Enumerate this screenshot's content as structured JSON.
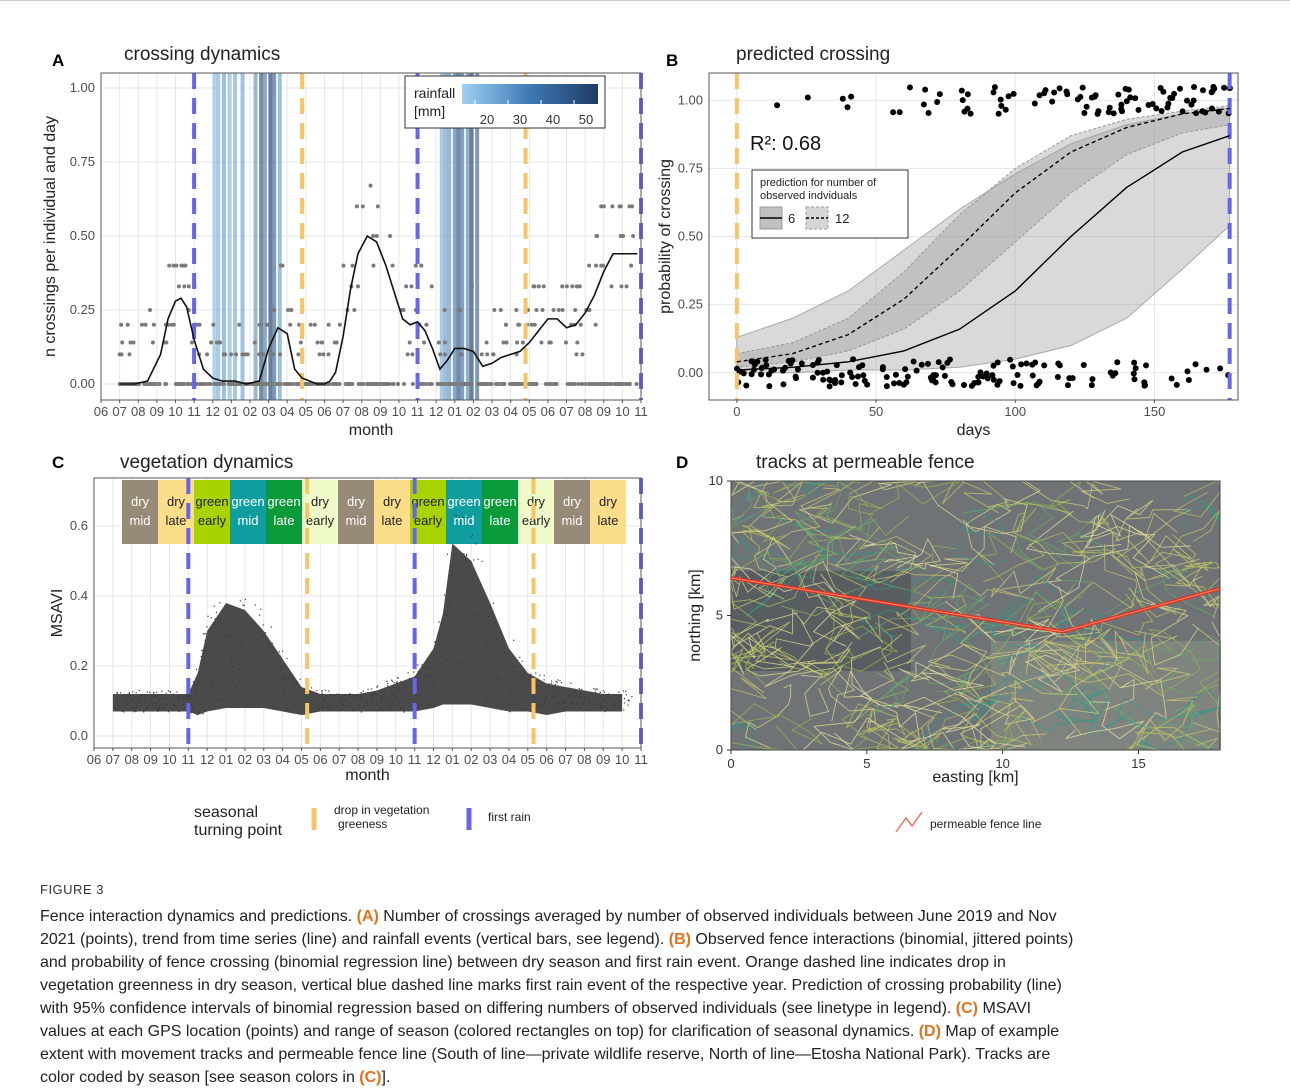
{
  "panels": {
    "A": {
      "letter": "A",
      "title": "crossing dynamics"
    },
    "B": {
      "letter": "B",
      "title": "predicted crossing"
    },
    "C": {
      "letter": "C",
      "title": "vegetation dynamics"
    },
    "D": {
      "letter": "D",
      "title": "tracks at permeable fence"
    }
  },
  "legend": {
    "rainfall_title_line1": "rainfall",
    "rainfall_title_line2": "[mm]",
    "rainfall_ticks": [
      "20",
      "30",
      "40",
      "50"
    ],
    "prediction_title_line1": "prediction for number of",
    "prediction_title_line2": "observed indviduals",
    "prediction_items": [
      "6",
      "12"
    ],
    "r2_label": "R²: 0.68",
    "seasonal_line1": "seasonal",
    "seasonal_line2": "turning point",
    "drop_label_line1": "drop in vegetation",
    "drop_label_line2": "greeness",
    "first_rain_label": "first rain",
    "fence_label": "permeable fence line"
  },
  "colors": {
    "orange_dashed": "#f8c46a",
    "blue_dashed": "#6565ef",
    "rain_light": "#9fd0f2",
    "rain_dark": "#1e3b63",
    "fence": "#e0301e",
    "dry_mid": "#978a77",
    "dry_late": "#fcdd8a",
    "green_early": "#a9d300",
    "green_mid": "#0f9da0",
    "green_late": "#0a9a3a",
    "dry_early": "#eefac8"
  },
  "chart_data": [
    {
      "panel": "A",
      "type": "line",
      "title": "crossing dynamics",
      "xlabel": "month",
      "ylabel": "n crossings per individual and day",
      "x_ticks": [
        "06",
        "07",
        "08",
        "09",
        "10",
        "11",
        "12",
        "01",
        "02",
        "03",
        "04",
        "05",
        "06",
        "07",
        "08",
        "09",
        "10",
        "11",
        "12",
        "01",
        "02",
        "03",
        "04",
        "05",
        "06",
        "07",
        "08",
        "09",
        "10",
        "11"
      ],
      "y_ticks": [
        "0.00",
        "0.25",
        "0.50",
        "0.75",
        "1.00"
      ],
      "ylim": [
        0,
        1
      ],
      "trend_month_index": [
        1,
        1.8,
        2.5,
        3.2,
        3.6,
        4.0,
        4.3,
        4.6,
        5.0,
        5.5,
        6.0,
        6.5,
        7.2,
        7.8,
        8.5,
        9.0,
        9.5,
        10.0,
        10.4,
        10.8,
        11.2,
        11.6,
        12.0,
        12.3,
        12.6,
        13.0,
        13.4,
        13.8,
        14.3,
        14.8,
        15.3,
        15.8,
        16.2,
        16.6,
        17.0,
        17.4,
        17.8,
        18.2,
        18.6,
        19.0,
        19.5,
        20.0,
        20.5,
        21.0,
        21.5,
        22.0,
        22.5,
        23.0,
        23.5,
        24.0,
        24.5,
        25.0,
        25.5,
        26.0,
        26.5,
        27.0,
        27.5,
        28.0,
        28.5,
        28.8
      ],
      "trend_values": [
        0,
        0,
        0.01,
        0.1,
        0.22,
        0.28,
        0.29,
        0.26,
        0.15,
        0.05,
        0.02,
        0.01,
        0.01,
        0.0,
        0.01,
        0.12,
        0.19,
        0.17,
        0.05,
        0.02,
        0.01,
        0.0,
        0.0,
        0.01,
        0.04,
        0.16,
        0.32,
        0.44,
        0.5,
        0.48,
        0.4,
        0.3,
        0.22,
        0.2,
        0.21,
        0.18,
        0.12,
        0.05,
        0.08,
        0.12,
        0.12,
        0.11,
        0.06,
        0.07,
        0.09,
        0.1,
        0.11,
        0.14,
        0.18,
        0.22,
        0.22,
        0.19,
        0.2,
        0.24,
        0.3,
        0.38,
        0.44,
        0.44,
        0.44,
        0.44
      ],
      "first_rain_month_index": [
        5,
        17,
        29
      ],
      "greenness_drop_month_index": [
        10.8,
        22.8
      ],
      "rainfall_bars_month_index": [
        6.1,
        6.3,
        6.6,
        6.9,
        7.2,
        7.6,
        8.3,
        8.6,
        8.8,
        9.1,
        9.3,
        9.6,
        18.3,
        18.5,
        18.7,
        19.0,
        19.2,
        19.4,
        19.7,
        19.9,
        20.2
      ],
      "rainfall_mm": [
        15,
        18,
        22,
        16,
        19,
        21,
        25,
        40,
        30,
        45,
        35,
        22,
        18,
        22,
        25,
        30,
        40,
        33,
        28,
        45,
        35
      ]
    },
    {
      "panel": "B",
      "type": "line",
      "title": "predicted crossing",
      "xlabel": "days",
      "ylabel": "probability of crossing",
      "x_ticks": [
        "0",
        "50",
        "100",
        "150"
      ],
      "y_ticks": [
        "0.00",
        "0.25",
        "0.50",
        "0.75",
        "1.00"
      ],
      "xlim": [
        -10,
        180
      ],
      "ylim": [
        -0.1,
        1.1
      ],
      "x": [
        0,
        20,
        40,
        60,
        80,
        100,
        120,
        140,
        160,
        177
      ],
      "series": [
        {
          "name": "6",
          "values": [
            0.01,
            0.02,
            0.04,
            0.08,
            0.16,
            0.3,
            0.5,
            0.68,
            0.81,
            0.87
          ],
          "lower": [
            0.0,
            0.0,
            0.01,
            0.01,
            0.02,
            0.05,
            0.1,
            0.2,
            0.38,
            0.54
          ],
          "upper": [
            0.13,
            0.2,
            0.3,
            0.45,
            0.6,
            0.73,
            0.84,
            0.91,
            0.95,
            0.97
          ]
        },
        {
          "name": "12",
          "values": [
            0.04,
            0.07,
            0.14,
            0.27,
            0.46,
            0.66,
            0.81,
            0.9,
            0.95,
            0.97
          ],
          "lower": [
            0.02,
            0.04,
            0.08,
            0.16,
            0.3,
            0.48,
            0.66,
            0.8,
            0.88,
            0.91
          ],
          "upper": [
            0.07,
            0.11,
            0.2,
            0.37,
            0.58,
            0.75,
            0.87,
            0.93,
            0.96,
            0.98
          ]
        }
      ],
      "greenness_drop_day": 0,
      "first_rain_day": 177
    },
    {
      "panel": "C",
      "type": "scatter",
      "title": "vegetation dynamics",
      "xlabel": "month",
      "ylabel": "MSAVI",
      "x_ticks": [
        "06",
        "07",
        "08",
        "09",
        "10",
        "11",
        "12",
        "01",
        "02",
        "03",
        "04",
        "05",
        "06",
        "07",
        "08",
        "09",
        "10",
        "11",
        "12",
        "01",
        "02",
        "03",
        "04",
        "05",
        "06",
        "07",
        "08",
        "09",
        "10",
        "11"
      ],
      "y_ticks": [
        "0.0",
        "0.2",
        "0.4",
        "0.6"
      ],
      "ylim": [
        -0.02,
        0.72
      ],
      "seasons": [
        {
          "line1": "dry",
          "line2": "mid",
          "color_key": "dry_mid"
        },
        {
          "line1": "dry",
          "line2": "late",
          "color_key": "dry_late"
        },
        {
          "line1": "green",
          "line2": "early",
          "color_key": "green_early"
        },
        {
          "line1": "green",
          "line2": "mid",
          "color_key": "green_mid"
        },
        {
          "line1": "green",
          "line2": "late",
          "color_key": "green_late"
        },
        {
          "line1": "dry",
          "line2": "early",
          "color_key": "dry_early"
        },
        {
          "line1": "dry",
          "line2": "mid",
          "color_key": "dry_mid"
        },
        {
          "line1": "dry",
          "line2": "late",
          "color_key": "dry_late"
        },
        {
          "line1": "green",
          "line2": "early",
          "color_key": "green_early"
        },
        {
          "line1": "green",
          "line2": "mid",
          "color_key": "green_mid"
        },
        {
          "line1": "green",
          "line2": "late",
          "color_key": "green_late"
        },
        {
          "line1": "dry",
          "line2": "early",
          "color_key": "dry_early"
        },
        {
          "line1": "dry",
          "line2": "mid",
          "color_key": "dry_mid"
        },
        {
          "line1": "dry",
          "line2": "late",
          "color_key": "dry_late"
        }
      ],
      "first_rain_month_index": [
        5,
        17,
        29
      ],
      "greenness_drop_month_index": [
        11.3,
        23.3
      ]
    },
    {
      "panel": "D",
      "type": "line",
      "title": "tracks at permeable fence",
      "xlabel": "easting [km]",
      "ylabel": "northing [km]",
      "x_ticks": [
        "0",
        "5",
        "10",
        "15"
      ],
      "y_ticks": [
        "0",
        "5",
        "10"
      ],
      "xlim": [
        0,
        18
      ],
      "ylim": [
        0,
        10
      ],
      "fence_x": [
        0,
        12.2,
        18
      ],
      "fence_y": [
        6.4,
        4.4,
        6.0
      ]
    }
  ],
  "caption": {
    "label": "FIGURE 3",
    "lines": [
      [
        {
          "t": "Fence interaction dynamics and predictions. "
        },
        {
          "t": "(A)",
          "h": true
        },
        {
          "t": " Number of crossings averaged by number of observed individuals between June 2019 and Nov"
        }
      ],
      [
        {
          "t": "2021 (points), trend from time series (line) and rainfall events (vertical bars, see legend). "
        },
        {
          "t": "(B)",
          "h": true
        },
        {
          "t": " Observed fence interactions (binomial, jittered points)"
        }
      ],
      [
        {
          "t": "and probability of fence crossing (binomial regression line) between dry season and first rain event. Orange dashed line indicates drop in"
        }
      ],
      [
        {
          "t": "vegetation greenness in dry season, vertical blue dashed line marks first rain event of the respective year. Prediction of crossing probability (line)"
        }
      ],
      [
        {
          "t": "with 95% confidence intervals of binomial regression based on differing numbers of observed individuals (see linetype in legend). "
        },
        {
          "t": "(C)",
          "h": true
        },
        {
          "t": " MSAVI"
        }
      ],
      [
        {
          "t": "values at each GPS location (points) and range of season (colored rectangles on top) for clarification of seasonal dynamics. "
        },
        {
          "t": "(D)",
          "h": true
        },
        {
          "t": " Map of example"
        }
      ],
      [
        {
          "t": "extent with movement tracks and permeable fence line (South of line—private wildlife reserve, North of line—Etosha National Park). Tracks are"
        }
      ],
      [
        {
          "t": "color coded by season [see season colors in "
        },
        {
          "t": "(C)",
          "h": true
        },
        {
          "t": "]."
        }
      ]
    ]
  }
}
